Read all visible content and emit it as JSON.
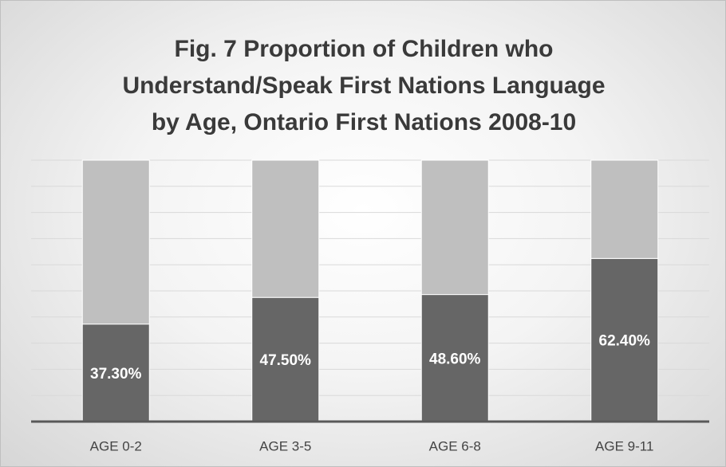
{
  "chart_data": {
    "type": "stacked_bar",
    "title": "Fig. 7  Proportion of Children who Understand/Speak First Nations Language by Age, Ontario First Nations 2008-10",
    "categories": [
      "AGE 0-2",
      "AGE 3-5",
      "AGE 6-8",
      "AGE 9-11"
    ],
    "series": [
      {
        "color": "#666666",
        "values": [
          37.3,
          47.5,
          48.6,
          62.4
        ],
        "value_labels": [
          "37.30%",
          "47.50%",
          "48.60%",
          "62.40%"
        ]
      },
      {
        "color": "#bfbfbf",
        "values": [
          62.7,
          52.5,
          51.4,
          37.6
        ]
      }
    ],
    "ylim": [
      0,
      100
    ],
    "yticks": [
      0,
      10,
      20,
      30,
      40,
      50,
      60,
      70,
      80,
      90,
      100
    ],
    "grid": true
  }
}
